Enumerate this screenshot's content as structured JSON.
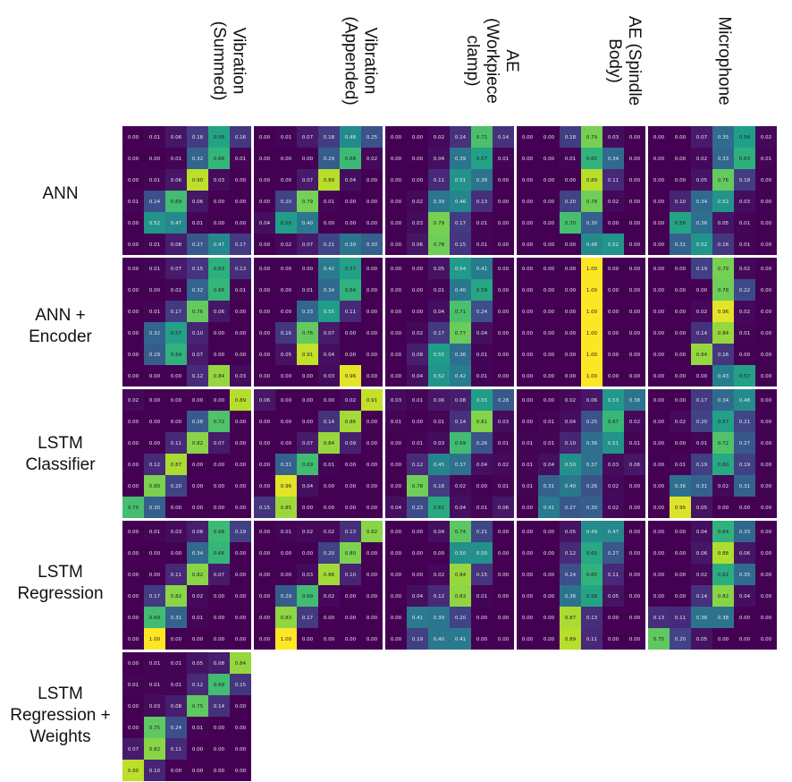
{
  "column_headers": [
    "Vibration\n(Summed)",
    "Vibration\n(Appended)",
    "AE\n(Workpiece\nclamp)",
    "AE (Spindle\nBody)",
    "Microphone"
  ],
  "row_headers": [
    "ANN",
    "ANN +\nEncoder",
    "LSTM\nClassifier",
    "LSTM\nRegression",
    "LSTM\nRegression +\nWeights"
  ],
  "colors": {
    "low": "#440154",
    "high": "#fde725",
    "background": "#ffffff"
  },
  "chart_data": {
    "type": "heatmap",
    "colormap": "viridis",
    "vmin": 0,
    "vmax": 1,
    "decimals": 2,
    "matrices": [
      {
        "row": "ANN",
        "column": "Vibration (Summed)",
        "values": [
          [
            0.0,
            0.01,
            0.06,
            0.18,
            0.58,
            0.16
          ],
          [
            0.0,
            0.0,
            0.01,
            0.32,
            0.66,
            0.01
          ],
          [
            0.0,
            0.01,
            0.06,
            0.9,
            0.03,
            0.0
          ],
          [
            0.01,
            0.24,
            0.69,
            0.06,
            0.0,
            0.0
          ],
          [
            0.0,
            0.52,
            0.47,
            0.01,
            0.0,
            0.0
          ],
          [
            0.0,
            0.01,
            0.08,
            0.27,
            0.47,
            0.17
          ]
        ]
      },
      {
        "row": "ANN",
        "column": "Vibration (Appended)",
        "values": [
          [
            0.0,
            0.01,
            0.07,
            0.18,
            0.48,
            0.25
          ],
          [
            0.0,
            0.0,
            0.0,
            0.29,
            0.68,
            0.02
          ],
          [
            0.0,
            0.0,
            0.07,
            0.89,
            0.04,
            0.0
          ],
          [
            0.0,
            0.2,
            0.79,
            0.01,
            0.0,
            0.0
          ],
          [
            0.04,
            0.56,
            0.4,
            0.0,
            0.0,
            0.0
          ],
          [
            0.0,
            0.02,
            0.07,
            0.21,
            0.39,
            0.3
          ]
        ]
      },
      {
        "row": "ANN",
        "column": "AE (Workpiece clamp)",
        "values": [
          [
            0.0,
            0.0,
            0.02,
            0.14,
            0.71,
            0.14
          ],
          [
            0.0,
            0.0,
            0.04,
            0.39,
            0.57,
            0.01
          ],
          [
            0.0,
            0.0,
            0.11,
            0.51,
            0.38,
            0.0
          ],
          [
            0.0,
            0.02,
            0.39,
            0.46,
            0.13,
            0.0
          ],
          [
            0.0,
            0.03,
            0.79,
            0.17,
            0.01,
            0.0
          ],
          [
            0.0,
            0.06,
            0.78,
            0.15,
            0.01,
            0.0
          ]
        ]
      },
      {
        "row": "ANN",
        "column": "AE (Spindle Body)",
        "values": [
          [
            0.0,
            0.0,
            0.18,
            0.79,
            0.03,
            0.0
          ],
          [
            0.0,
            0.0,
            0.01,
            0.65,
            0.34,
            0.0
          ],
          [
            0.0,
            0.0,
            0.0,
            0.89,
            0.11,
            0.0
          ],
          [
            0.0,
            0.0,
            0.2,
            0.78,
            0.02,
            0.0
          ],
          [
            0.0,
            0.0,
            0.7,
            0.3,
            0.0,
            0.0
          ],
          [
            0.0,
            0.0,
            0.0,
            0.48,
            0.52,
            0.0
          ]
        ]
      },
      {
        "row": "ANN",
        "column": "Microphone",
        "values": [
          [
            0.0,
            0.0,
            0.07,
            0.35,
            0.56,
            0.02
          ],
          [
            0.0,
            0.0,
            0.02,
            0.33,
            0.63,
            0.01
          ],
          [
            0.0,
            0.0,
            0.05,
            0.76,
            0.18,
            0.0
          ],
          [
            0.0,
            0.1,
            0.34,
            0.52,
            0.03,
            0.0
          ],
          [
            0.0,
            0.58,
            0.36,
            0.05,
            0.01,
            0.0
          ],
          [
            0.0,
            0.31,
            0.52,
            0.16,
            0.01,
            0.0
          ]
        ]
      },
      {
        "row": "ANN + Encoder",
        "column": "Vibration (Summed)",
        "values": [
          [
            0.0,
            0.01,
            0.07,
            0.15,
            0.63,
            0.13
          ],
          [
            0.0,
            0.0,
            0.01,
            0.32,
            0.66,
            0.01
          ],
          [
            0.0,
            0.01,
            0.17,
            0.76,
            0.06,
            0.0
          ],
          [
            0.0,
            0.32,
            0.57,
            0.1,
            0.0,
            0.0
          ],
          [
            0.0,
            0.29,
            0.64,
            0.07,
            0.0,
            0.0
          ],
          [
            0.0,
            0.0,
            0.0,
            0.12,
            0.84,
            0.03
          ]
        ]
      },
      {
        "row": "ANN + Encoder",
        "column": "Vibration (Appended)",
        "values": [
          [
            0.0,
            0.0,
            0.0,
            0.42,
            0.57,
            0.0
          ],
          [
            0.0,
            0.0,
            0.01,
            0.34,
            0.64,
            0.0
          ],
          [
            0.0,
            0.0,
            0.33,
            0.55,
            0.11,
            0.0
          ],
          [
            0.0,
            0.16,
            0.76,
            0.07,
            0.0,
            0.0
          ],
          [
            0.0,
            0.05,
            0.91,
            0.04,
            0.0,
            0.0
          ],
          [
            0.0,
            0.0,
            0.0,
            0.03,
            0.96,
            0.0
          ]
        ]
      },
      {
        "row": "ANN + Encoder",
        "column": "AE (Workpiece clamp)",
        "values": [
          [
            0.0,
            0.0,
            0.05,
            0.54,
            0.41,
            0.0
          ],
          [
            0.0,
            0.0,
            0.01,
            0.4,
            0.59,
            0.0
          ],
          [
            0.0,
            0.0,
            0.04,
            0.71,
            0.24,
            0.0
          ],
          [
            0.0,
            0.02,
            0.17,
            0.77,
            0.04,
            0.0
          ],
          [
            0.0,
            0.08,
            0.55,
            0.36,
            0.01,
            0.0
          ],
          [
            0.0,
            0.04,
            0.52,
            0.42,
            0.01,
            0.0
          ]
        ]
      },
      {
        "row": "ANN + Encoder",
        "column": "AE (Spindle Body)",
        "values": [
          [
            0.0,
            0.0,
            0.0,
            1.0,
            0.0,
            0.0
          ],
          [
            0.0,
            0.0,
            0.0,
            1.0,
            0.0,
            0.0
          ],
          [
            0.0,
            0.0,
            0.0,
            1.0,
            0.0,
            0.0
          ],
          [
            0.0,
            0.0,
            0.0,
            1.0,
            0.0,
            0.0
          ],
          [
            0.0,
            0.0,
            0.0,
            1.0,
            0.0,
            0.0
          ],
          [
            0.0,
            0.0,
            0.0,
            1.0,
            0.0,
            0.0
          ]
        ]
      },
      {
        "row": "ANN + Encoder",
        "column": "Microphone",
        "values": [
          [
            0.0,
            0.0,
            0.19,
            0.79,
            0.02,
            0.0
          ],
          [
            0.0,
            0.0,
            0.0,
            0.78,
            0.22,
            0.0
          ],
          [
            0.0,
            0.0,
            0.02,
            0.96,
            0.02,
            0.0
          ],
          [
            0.0,
            0.0,
            0.14,
            0.84,
            0.01,
            0.0
          ],
          [
            0.0,
            0.0,
            0.84,
            0.16,
            0.0,
            0.0
          ],
          [
            0.0,
            0.0,
            0.0,
            0.43,
            0.57,
            0.0
          ]
        ]
      },
      {
        "row": "LSTM Classifier",
        "column": "Vibration (Summed)",
        "values": [
          [
            0.02,
            0.0,
            0.0,
            0.0,
            0.0,
            0.89
          ],
          [
            0.0,
            0.0,
            0.0,
            0.28,
            0.72,
            0.0
          ],
          [
            0.0,
            0.0,
            0.11,
            0.82,
            0.07,
            0.0
          ],
          [
            0.0,
            0.12,
            0.87,
            0.0,
            0.0,
            0.0
          ],
          [
            0.0,
            0.8,
            0.2,
            0.0,
            0.0,
            0.0
          ],
          [
            0.7,
            0.3,
            0.0,
            0.0,
            0.0,
            0.0
          ]
        ]
      },
      {
        "row": "LSTM Classifier",
        "column": "Vibration (Appended)",
        "values": [
          [
            0.06,
            0.0,
            0.0,
            0.0,
            0.02,
            0.91
          ],
          [
            0.0,
            0.0,
            0.0,
            0.14,
            0.86,
            0.0
          ],
          [
            0.0,
            0.0,
            0.07,
            0.84,
            0.09,
            0.0
          ],
          [
            0.0,
            0.31,
            0.69,
            0.01,
            0.0,
            0.0
          ],
          [
            0.0,
            0.96,
            0.04,
            0.0,
            0.0,
            0.0
          ],
          [
            0.15,
            0.85,
            0.0,
            0.0,
            0.0,
            0.0
          ]
        ]
      },
      {
        "row": "LSTM Classifier",
        "column": "AE (Workpiece clamp)",
        "values": [
          [
            0.03,
            0.01,
            0.06,
            0.08,
            0.55,
            0.28
          ],
          [
            0.01,
            0.0,
            0.01,
            0.14,
            0.81,
            0.03
          ],
          [
            0.0,
            0.01,
            0.03,
            0.69,
            0.26,
            0.01
          ],
          [
            0.0,
            0.12,
            0.45,
            0.37,
            0.04,
            0.02
          ],
          [
            0.0,
            0.78,
            0.18,
            0.02,
            0.0,
            0.01
          ],
          [
            0.04,
            0.23,
            0.61,
            0.04,
            0.01,
            0.06
          ]
        ]
      },
      {
        "row": "LSTM Classifier",
        "column": "AE (Spindle Body)",
        "values": [
          [
            0.0,
            0.0,
            0.02,
            0.06,
            0.53,
            0.38
          ],
          [
            0.0,
            0.01,
            0.04,
            0.25,
            0.67,
            0.02
          ],
          [
            0.01,
            0.01,
            0.1,
            0.36,
            0.51,
            0.01
          ],
          [
            0.01,
            0.04,
            0.5,
            0.37,
            0.03,
            0.06
          ],
          [
            0.01,
            0.31,
            0.4,
            0.26,
            0.02,
            0.0
          ],
          [
            0.0,
            0.41,
            0.27,
            0.3,
            0.02,
            0.0
          ]
        ]
      },
      {
        "row": "LSTM Classifier",
        "column": "Microphone",
        "values": [
          [
            0.0,
            0.0,
            0.17,
            0.34,
            0.48,
            0.0
          ],
          [
            0.0,
            0.02,
            0.2,
            0.57,
            0.21,
            0.0
          ],
          [
            0.0,
            0.0,
            0.01,
            0.72,
            0.27,
            0.0
          ],
          [
            0.0,
            0.01,
            0.19,
            0.6,
            0.19,
            0.0
          ],
          [
            0.0,
            0.36,
            0.31,
            0.02,
            0.31,
            0.0
          ],
          [
            0.0,
            0.95,
            0.05,
            0.0,
            0.0,
            0.0
          ]
        ]
      },
      {
        "row": "LSTM Regression",
        "column": "Vibration (Summed)",
        "values": [
          [
            0.0,
            0.01,
            0.03,
            0.08,
            0.68,
            0.19
          ],
          [
            0.0,
            0.0,
            0.0,
            0.34,
            0.66,
            0.0
          ],
          [
            0.0,
            0.0,
            0.11,
            0.82,
            0.07,
            0.0
          ],
          [
            0.0,
            0.17,
            0.82,
            0.02,
            0.0,
            0.0
          ],
          [
            0.0,
            0.69,
            0.31,
            0.01,
            0.0,
            0.0
          ],
          [
            0.0,
            1.0,
            0.0,
            0.0,
            0.0,
            0.0
          ]
        ]
      },
      {
        "row": "LSTM Regression",
        "column": "Vibration (Appended)",
        "values": [
          [
            0.0,
            0.01,
            0.02,
            0.02,
            0.13,
            0.82
          ],
          [
            0.0,
            0.0,
            0.0,
            0.2,
            0.8,
            0.0
          ],
          [
            0.0,
            0.0,
            0.03,
            0.86,
            0.1,
            0.0
          ],
          [
            0.0,
            0.29,
            0.69,
            0.02,
            0.0,
            0.0
          ],
          [
            0.0,
            0.83,
            0.17,
            0.0,
            0.0,
            0.0
          ],
          [
            0.0,
            1.0,
            0.0,
            0.0,
            0.0,
            0.0
          ]
        ]
      },
      {
        "row": "LSTM Regression",
        "column": "AE (Workpiece clamp)",
        "values": [
          [
            0.0,
            0.0,
            0.04,
            0.74,
            0.21,
            0.0
          ],
          [
            0.0,
            0.0,
            0.0,
            0.5,
            0.5,
            0.0
          ],
          [
            0.0,
            0.0,
            0.02,
            0.84,
            0.15,
            0.0
          ],
          [
            0.0,
            0.04,
            0.12,
            0.83,
            0.01,
            0.0
          ],
          [
            0.0,
            0.41,
            0.39,
            0.2,
            0.0,
            0.0
          ],
          [
            0.0,
            0.19,
            0.4,
            0.41,
            0.0,
            0.0
          ]
        ]
      },
      {
        "row": "LSTM Regression",
        "column": "AE (Spindle Body)",
        "values": [
          [
            0.0,
            0.0,
            0.05,
            0.49,
            0.47,
            0.0
          ],
          [
            0.0,
            0.0,
            0.12,
            0.6,
            0.27,
            0.0
          ],
          [
            0.0,
            0.0,
            0.24,
            0.65,
            0.11,
            0.0
          ],
          [
            0.0,
            0.0,
            0.38,
            0.58,
            0.05,
            0.0
          ],
          [
            0.0,
            0.0,
            0.87,
            0.13,
            0.0,
            0.0
          ],
          [
            0.0,
            0.0,
            0.89,
            0.11,
            0.0,
            0.0
          ]
        ]
      },
      {
        "row": "LSTM Regression",
        "column": "Microphone",
        "values": [
          [
            0.0,
            0.0,
            0.04,
            0.64,
            0.33,
            0.0
          ],
          [
            0.0,
            0.0,
            0.06,
            0.88,
            0.06,
            0.0
          ],
          [
            0.0,
            0.0,
            0.02,
            0.62,
            0.35,
            0.0
          ],
          [
            0.0,
            0.0,
            0.14,
            0.82,
            0.04,
            0.0
          ],
          [
            0.13,
            0.11,
            0.38,
            0.38,
            0.0,
            0.0
          ],
          [
            0.75,
            0.2,
            0.05,
            0.0,
            0.0,
            0.0
          ]
        ]
      },
      {
        "row": "LSTM Regression + Weights",
        "column": "Vibration (Summed)",
        "values": [
          [
            0.0,
            0.01,
            0.01,
            0.05,
            0.08,
            0.84
          ],
          [
            0.01,
            0.01,
            0.01,
            0.12,
            0.69,
            0.15
          ],
          [
            0.0,
            0.03,
            0.08,
            0.75,
            0.14,
            0.0
          ],
          [
            0.0,
            0.75,
            0.24,
            0.01,
            0.0,
            0.0
          ],
          [
            0.07,
            0.82,
            0.11,
            0.0,
            0.0,
            0.0
          ],
          [
            0.9,
            0.1,
            0.0,
            0.0,
            0.0,
            0.0
          ]
        ]
      }
    ]
  }
}
